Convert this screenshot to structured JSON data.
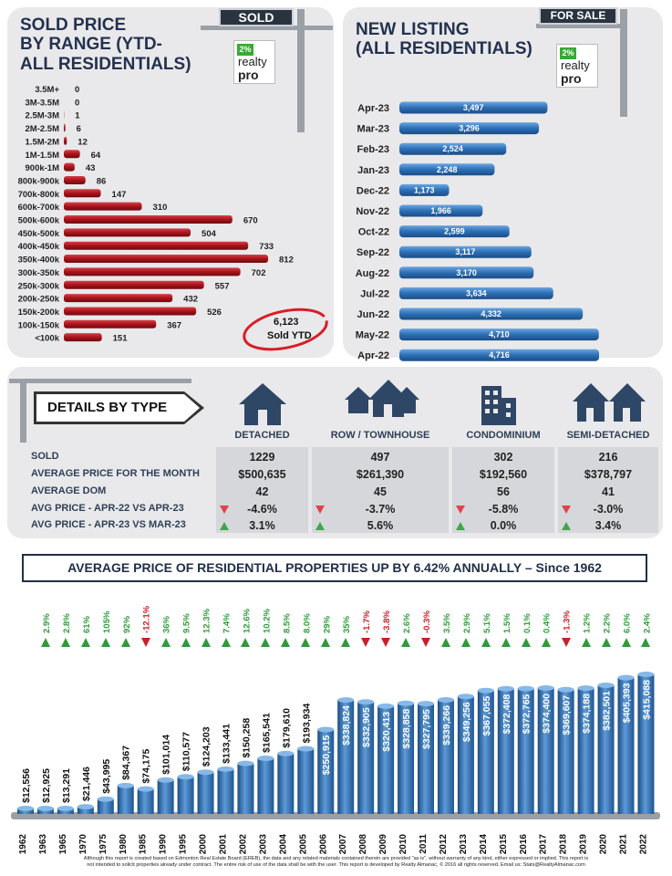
{
  "sold_panel": {
    "title_l1": "SOLD PRICE",
    "title_l2": "BY RANGE (YTD-",
    "title_l3": "ALL RESIDENTIALS)",
    "sign": "SOLD",
    "total_value": "6,123",
    "total_label": "Sold YTD"
  },
  "listing_panel": {
    "title_l1": "NEW LISTING",
    "title_l2": "(ALL RESIDENTIALS)",
    "sign": "FOR SALE"
  },
  "logo": {
    "badge": "2%",
    "line1": "realty",
    "line2": "pro"
  },
  "colors": {
    "red": "#a8131b",
    "blue": "#2d6fb5",
    "navy": "#24324f",
    "up": "#2f9a3a",
    "down": "#c8202a"
  },
  "details": {
    "title": "DETAILS BY TYPE",
    "columns": [
      "DETACHED",
      "ROW / TOWNHOUSE",
      "CONDOMINIUM",
      "SEMI-DETACHED"
    ],
    "row_labels": [
      "SOLD",
      "AVERAGE PRICE FOR THE MONTH",
      "AVERAGE DOM",
      "AVG PRICE - APR-22 VS APR-23",
      "AVG PRICE - APR-23 VS MAR-23"
    ],
    "sold": [
      "1229",
      "497",
      "302",
      "216"
    ],
    "avg_price": [
      "$500,635",
      "$261,390",
      "$192,560",
      "$378,797"
    ],
    "dom": [
      "42",
      "45",
      "56",
      "41"
    ],
    "yoy": [
      "-4.6%",
      "-3.7%",
      "-5.8%",
      "-3.0%"
    ],
    "mom": [
      "3.1%",
      "5.6%",
      "0.0%",
      "3.4%"
    ]
  },
  "banner": "AVERAGE PRICE OF RESIDENTIAL PROPERTIES UP BY 6.42% ANNUALLY – Since 1962",
  "footer_l1": "Although this report is created based on Edmonton Real Estate Board (EREB), the data and any related materials contained therein are provided \"as is\", without warranty of any kind, either expressed or implied.  This report is",
  "footer_l2": "not intended to solicit properties already under contract.  The entire risk of use of the data shall be with the user.  This report is developed by Realty Almanac, © 2016 all rights reserved. Email us: Stats@RealtyAlmanac.com",
  "chart_data": [
    {
      "type": "bar",
      "title": "SOLD PRICE BY RANGE (YTD- ALL RESIDENTIALS)",
      "orientation": "horizontal",
      "categories": [
        "3.5M+",
        "3M-3.5M",
        "2.5M-3M",
        "2M-2.5M",
        "1.5M-2M",
        "1M-1.5M",
        "900k-1M",
        "800k-900k",
        "700k-800k",
        "600k-700k",
        "500k-600k",
        "450k-500k",
        "400k-450k",
        "350k-400k",
        "300k-350k",
        "250k-300k",
        "200k-250k",
        "150k-200k",
        "100k-150k",
        "<100k"
      ],
      "values": [
        0,
        0,
        1,
        6,
        12,
        64,
        43,
        86,
        147,
        310,
        670,
        504,
        733,
        812,
        702,
        557,
        432,
        526,
        367,
        151
      ],
      "labels": [
        "0",
        "0",
        "1",
        "6",
        "12",
        "64",
        "43",
        "86",
        "147",
        "310",
        "670",
        "504",
        "733",
        "812",
        "702",
        "557",
        "432",
        "526",
        "367",
        "151"
      ],
      "xlim": [
        0,
        812
      ]
    },
    {
      "type": "bar",
      "title": "NEW LISTING (ALL RESIDENTIALS)",
      "orientation": "horizontal",
      "categories": [
        "Apr-23",
        "Mar-23",
        "Feb-23",
        "Jan-23",
        "Dec-22",
        "Nov-22",
        "Oct-22",
        "Sep-22",
        "Aug-22",
        "Jul-22",
        "Jun-22",
        "May-22",
        "Apr-22"
      ],
      "values": [
        3497,
        3296,
        2524,
        2248,
        1173,
        1966,
        2599,
        3117,
        3170,
        3634,
        4332,
        4710,
        4716
      ],
      "labels": [
        "3,497",
        "3,296",
        "2,524",
        "2,248",
        "1,173",
        "1,966",
        "2,599",
        "3,117",
        "3,170",
        "3,634",
        "4,332",
        "4,710",
        "4,716"
      ],
      "xlim": [
        0,
        4716
      ]
    },
    {
      "type": "bar",
      "title": "AVERAGE PRICE OF RESIDENTIAL PROPERTIES UP BY 6.42% ANNUALLY – Since 1962",
      "categories": [
        "1962",
        "1963",
        "1965",
        "1970",
        "1975",
        "1980",
        "1985",
        "1990",
        "1995",
        "2000",
        "2001",
        "2002",
        "2003",
        "2004",
        "2005",
        "2006",
        "2007",
        "2008",
        "2009",
        "2010",
        "2011",
        "2012",
        "2013",
        "2014",
        "2015",
        "2016",
        "2017",
        "2018",
        "2019",
        "2020",
        "2021",
        "2022"
      ],
      "values": [
        12556,
        12925,
        13291,
        21446,
        43995,
        84367,
        74175,
        101014,
        110577,
        124203,
        133441,
        150258,
        165541,
        179610,
        193934,
        250915,
        338824,
        332905,
        320413,
        328858,
        327795,
        339266,
        349256,
        367055,
        372408,
        372765,
        374400,
        369607,
        374188,
        382501,
        405393,
        415088
      ],
      "labels": [
        "$12,556",
        "$12,925",
        "$13,291",
        "$21,446",
        "$43,995",
        "$84,367",
        "$74,175",
        "$101,014",
        "$110,577",
        "$124,203",
        "$133,441",
        "$150,258",
        "$165,541",
        "$179,610",
        "$193,934",
        "$250,915",
        "$338,824",
        "$332,905",
        "$320,413",
        "$328,858",
        "$327,795",
        "$339,266",
        "$349,256",
        "$367,055",
        "$372,408",
        "$372,765",
        "$374,400",
        "$369,607",
        "$374,188",
        "$382,501",
        "$405,393",
        "$415,088"
      ],
      "changes": [
        null,
        "2.9%",
        "2.8%",
        "61%",
        "105%",
        "92%",
        "-12.1%",
        "36%",
        "9.5%",
        "12.3%",
        "7.4%",
        "12.6%",
        "10.2%",
        "8.5%",
        "8.0%",
        "29%",
        "35%",
        "-1.7%",
        "-3.8%",
        "2.6%",
        "-0.3%",
        "3.5%",
        "2.9%",
        "5.1%",
        "1.5%",
        "0.1%",
        "0.4%",
        "-1.3%",
        "1.2%",
        "2.2%",
        "6.0%",
        "2.4%"
      ],
      "change_dir": [
        null,
        "up",
        "up",
        "up",
        "up",
        "up",
        "down",
        "up",
        "up",
        "up",
        "up",
        "up",
        "up",
        "up",
        "up",
        "up",
        "up",
        "down",
        "down",
        "up",
        "down",
        "up",
        "up",
        "up",
        "up",
        "up",
        "up",
        "down",
        "up",
        "up",
        "up",
        "up"
      ],
      "ylim": [
        0,
        415088
      ]
    }
  ]
}
